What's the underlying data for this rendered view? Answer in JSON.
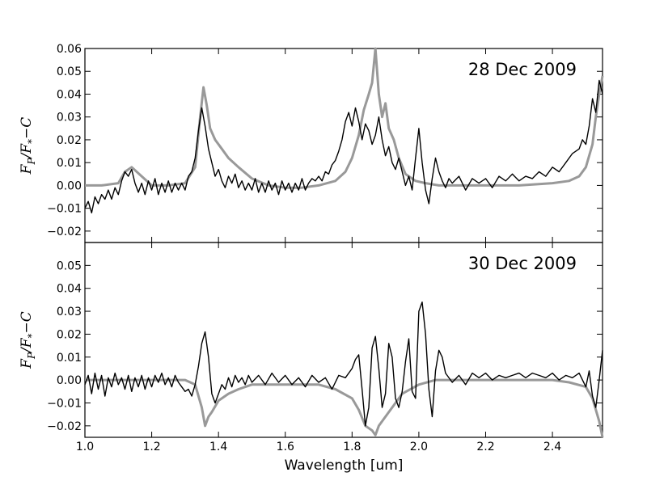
{
  "chart_data": {
    "type": "line",
    "xlabel": "Wavelength [um]",
    "ylabel": "F_P/F_*−C",
    "xlim": [
      1.0,
      2.55
    ],
    "x_ticks": [
      1.0,
      1.2,
      1.4,
      1.6,
      1.8,
      2.0,
      2.2,
      2.4
    ],
    "x_tick_labels": [
      "1.0",
      "1.2",
      "1.4",
      "1.6",
      "1.8",
      "2.0",
      "2.2",
      "2.4"
    ],
    "panels": [
      {
        "title": "28 Dec 2009",
        "ylim": [
          -0.025,
          0.06
        ],
        "y_ticks": [
          -0.02,
          -0.01,
          0.0,
          0.01,
          0.02,
          0.03,
          0.04,
          0.05,
          0.06
        ],
        "y_tick_labels": [
          "−0.02",
          "−0.01",
          "0.00",
          "0.01",
          "0.02",
          "0.03",
          "0.04",
          "0.05",
          "0.06"
        ],
        "series": [
          {
            "role": "model",
            "color": "#999999",
            "x": [
              1.0,
              1.05,
              1.1,
              1.12,
              1.14,
              1.17,
              1.2,
              1.25,
              1.3,
              1.33,
              1.345,
              1.355,
              1.365,
              1.375,
              1.39,
              1.41,
              1.43,
              1.46,
              1.5,
              1.55,
              1.6,
              1.65,
              1.7,
              1.75,
              1.78,
              1.8,
              1.82,
              1.835,
              1.85,
              1.86,
              1.87,
              1.875,
              1.88,
              1.89,
              1.9,
              1.91,
              1.925,
              1.94,
              1.96,
              1.99,
              2.02,
              2.06,
              2.1,
              2.2,
              2.3,
              2.4,
              2.45,
              2.48,
              2.5,
              2.52,
              2.53,
              2.54,
              2.55
            ],
            "y": [
              0.0,
              0.0,
              0.001,
              0.006,
              0.008,
              0.004,
              0.0,
              0.0,
              0.001,
              0.008,
              0.03,
              0.043,
              0.035,
              0.025,
              0.02,
              0.016,
              0.012,
              0.008,
              0.003,
              0.0,
              -0.001,
              -0.001,
              0.0,
              0.002,
              0.006,
              0.012,
              0.022,
              0.033,
              0.04,
              0.045,
              0.06,
              0.05,
              0.04,
              0.03,
              0.036,
              0.025,
              0.02,
              0.012,
              0.005,
              0.002,
              0.001,
              0.0,
              0.0,
              0.0,
              0.0,
              0.001,
              0.002,
              0.004,
              0.008,
              0.018,
              0.03,
              0.04,
              0.048
            ]
          },
          {
            "role": "data",
            "color": "#000000",
            "x": [
              1.0,
              1.01,
              1.02,
              1.03,
              1.04,
              1.05,
              1.06,
              1.07,
              1.08,
              1.09,
              1.1,
              1.11,
              1.12,
              1.13,
              1.14,
              1.15,
              1.16,
              1.17,
              1.18,
              1.19,
              1.2,
              1.21,
              1.22,
              1.23,
              1.24,
              1.25,
              1.26,
              1.27,
              1.28,
              1.29,
              1.3,
              1.31,
              1.32,
              1.33,
              1.34,
              1.35,
              1.36,
              1.37,
              1.38,
              1.39,
              1.4,
              1.41,
              1.42,
              1.43,
              1.44,
              1.45,
              1.46,
              1.47,
              1.48,
              1.49,
              1.5,
              1.51,
              1.52,
              1.53,
              1.54,
              1.55,
              1.56,
              1.57,
              1.58,
              1.59,
              1.6,
              1.61,
              1.62,
              1.63,
              1.64,
              1.65,
              1.66,
              1.67,
              1.68,
              1.69,
              1.7,
              1.71,
              1.72,
              1.73,
              1.74,
              1.75,
              1.76,
              1.77,
              1.78,
              1.79,
              1.8,
              1.81,
              1.82,
              1.83,
              1.84,
              1.85,
              1.86,
              1.87,
              1.88,
              1.89,
              1.9,
              1.91,
              1.92,
              1.93,
              1.94,
              1.95,
              1.96,
              1.97,
              1.98,
              1.99,
              2.0,
              2.01,
              2.02,
              2.03,
              2.04,
              2.05,
              2.06,
              2.07,
              2.08,
              2.09,
              2.1,
              2.12,
              2.14,
              2.16,
              2.18,
              2.2,
              2.22,
              2.24,
              2.26,
              2.28,
              2.3,
              2.32,
              2.34,
              2.36,
              2.38,
              2.4,
              2.42,
              2.44,
              2.46,
              2.48,
              2.49,
              2.5,
              2.51,
              2.52,
              2.53,
              2.54,
              2.55
            ],
            "y": [
              -0.01,
              -0.007,
              -0.012,
              -0.005,
              -0.008,
              -0.004,
              -0.006,
              -0.002,
              -0.006,
              -0.001,
              -0.004,
              0.002,
              0.006,
              0.004,
              0.007,
              0.001,
              -0.003,
              0.001,
              -0.004,
              0.002,
              -0.002,
              0.003,
              -0.004,
              0.001,
              -0.003,
              0.002,
              -0.003,
              0.001,
              -0.002,
              0.001,
              -0.002,
              0.004,
              0.006,
              0.012,
              0.024,
              0.034,
              0.026,
              0.016,
              0.01,
              0.004,
              0.007,
              0.002,
              -0.001,
              0.004,
              0.001,
              0.005,
              -0.001,
              0.002,
              -0.002,
              0.001,
              -0.002,
              0.003,
              -0.003,
              0.001,
              -0.003,
              0.002,
              -0.002,
              0.001,
              -0.004,
              0.002,
              -0.002,
              0.001,
              -0.003,
              0.001,
              -0.002,
              0.003,
              -0.002,
              0.001,
              0.003,
              0.002,
              0.004,
              0.002,
              0.006,
              0.005,
              0.009,
              0.011,
              0.015,
              0.02,
              0.028,
              0.032,
              0.026,
              0.034,
              0.028,
              0.02,
              0.027,
              0.024,
              0.018,
              0.022,
              0.03,
              0.02,
              0.013,
              0.017,
              0.01,
              0.007,
              0.012,
              0.006,
              0.0,
              0.004,
              -0.002,
              0.012,
              0.025,
              0.01,
              -0.002,
              -0.008,
              0.003,
              0.012,
              0.006,
              0.002,
              -0.001,
              0.003,
              0.001,
              0.004,
              -0.002,
              0.003,
              0.001,
              0.003,
              -0.001,
              0.004,
              0.002,
              0.005,
              0.002,
              0.004,
              0.003,
              0.006,
              0.004,
              0.008,
              0.006,
              0.01,
              0.014,
              0.016,
              0.02,
              0.018,
              0.026,
              0.038,
              0.032,
              0.046,
              0.04
            ]
          }
        ]
      },
      {
        "title": "30 Dec 2009",
        "ylim": [
          -0.025,
          0.06
        ],
        "y_ticks": [
          -0.02,
          -0.01,
          0.0,
          0.01,
          0.02,
          0.03,
          0.04,
          0.05
        ],
        "y_tick_labels": [
          "−0.02",
          "−0.01",
          "0.00",
          "0.01",
          "0.02",
          "0.03",
          "0.04",
          "0.05"
        ],
        "series": [
          {
            "role": "model",
            "color": "#999999",
            "x": [
              1.0,
              1.1,
              1.2,
              1.3,
              1.33,
              1.35,
              1.36,
              1.37,
              1.38,
              1.4,
              1.43,
              1.46,
              1.5,
              1.6,
              1.7,
              1.75,
              1.8,
              1.82,
              1.84,
              1.86,
              1.87,
              1.88,
              1.9,
              1.92,
              1.95,
              2.0,
              2.05,
              2.1,
              2.2,
              2.3,
              2.4,
              2.45,
              2.5,
              2.52,
              2.54,
              2.55
            ],
            "y": [
              0.0,
              0.0,
              0.0,
              0.0,
              -0.002,
              -0.012,
              -0.02,
              -0.016,
              -0.014,
              -0.009,
              -0.006,
              -0.004,
              -0.002,
              -0.002,
              -0.002,
              -0.004,
              -0.008,
              -0.013,
              -0.02,
              -0.022,
              -0.024,
              -0.02,
              -0.016,
              -0.012,
              -0.006,
              -0.002,
              0.0,
              0.0,
              0.0,
              0.0,
              0.0,
              -0.001,
              -0.003,
              -0.008,
              -0.018,
              -0.025
            ]
          },
          {
            "role": "data",
            "color": "#000000",
            "x": [
              1.0,
              1.01,
              1.02,
              1.03,
              1.04,
              1.05,
              1.06,
              1.07,
              1.08,
              1.09,
              1.1,
              1.11,
              1.12,
              1.13,
              1.14,
              1.15,
              1.16,
              1.17,
              1.18,
              1.19,
              1.2,
              1.21,
              1.22,
              1.23,
              1.24,
              1.25,
              1.26,
              1.27,
              1.28,
              1.29,
              1.3,
              1.31,
              1.32,
              1.33,
              1.34,
              1.35,
              1.36,
              1.37,
              1.38,
              1.39,
              1.4,
              1.41,
              1.42,
              1.43,
              1.44,
              1.45,
              1.46,
              1.47,
              1.48,
              1.49,
              1.5,
              1.52,
              1.54,
              1.56,
              1.58,
              1.6,
              1.62,
              1.64,
              1.66,
              1.68,
              1.7,
              1.72,
              1.74,
              1.76,
              1.78,
              1.8,
              1.81,
              1.82,
              1.83,
              1.84,
              1.85,
              1.86,
              1.87,
              1.88,
              1.89,
              1.9,
              1.91,
              1.92,
              1.93,
              1.94,
              1.95,
              1.96,
              1.97,
              1.98,
              1.99,
              2.0,
              2.01,
              2.02,
              2.03,
              2.04,
              2.05,
              2.06,
              2.07,
              2.08,
              2.1,
              2.12,
              2.14,
              2.16,
              2.18,
              2.2,
              2.22,
              2.24,
              2.26,
              2.28,
              2.3,
              2.32,
              2.34,
              2.36,
              2.38,
              2.4,
              2.42,
              2.44,
              2.46,
              2.48,
              2.5,
              2.51,
              2.52,
              2.53,
              2.54,
              2.55
            ],
            "y": [
              -0.002,
              0.002,
              -0.006,
              0.003,
              -0.004,
              0.002,
              -0.007,
              0.001,
              -0.003,
              0.003,
              -0.002,
              0.001,
              -0.004,
              0.002,
              -0.005,
              0.001,
              -0.003,
              0.002,
              -0.004,
              0.001,
              -0.003,
              0.002,
              -0.001,
              0.003,
              -0.002,
              0.001,
              -0.003,
              0.002,
              -0.001,
              -0.003,
              -0.005,
              -0.004,
              -0.007,
              -0.002,
              0.006,
              0.016,
              0.021,
              0.01,
              -0.006,
              -0.01,
              -0.006,
              -0.002,
              -0.004,
              0.001,
              -0.003,
              0.002,
              -0.001,
              0.001,
              -0.002,
              0.002,
              -0.001,
              0.002,
              -0.002,
              0.003,
              -0.001,
              0.002,
              -0.002,
              0.001,
              -0.003,
              0.002,
              -0.001,
              0.001,
              -0.004,
              0.002,
              0.001,
              0.005,
              0.009,
              0.011,
              -0.004,
              -0.02,
              -0.012,
              0.014,
              0.019,
              0.005,
              -0.012,
              -0.006,
              0.016,
              0.01,
              -0.008,
              -0.012,
              -0.005,
              0.008,
              0.018,
              -0.005,
              -0.008,
              0.03,
              0.034,
              0.02,
              -0.004,
              -0.016,
              0.004,
              0.013,
              0.01,
              0.003,
              -0.001,
              0.002,
              -0.002,
              0.003,
              0.001,
              0.003,
              0.0,
              0.002,
              0.001,
              0.002,
              0.003,
              0.001,
              0.003,
              0.002,
              0.001,
              0.003,
              0.0,
              0.002,
              0.001,
              0.003,
              -0.003,
              0.004,
              -0.007,
              -0.012,
              0.0,
              0.013
            ]
          }
        ]
      }
    ]
  }
}
